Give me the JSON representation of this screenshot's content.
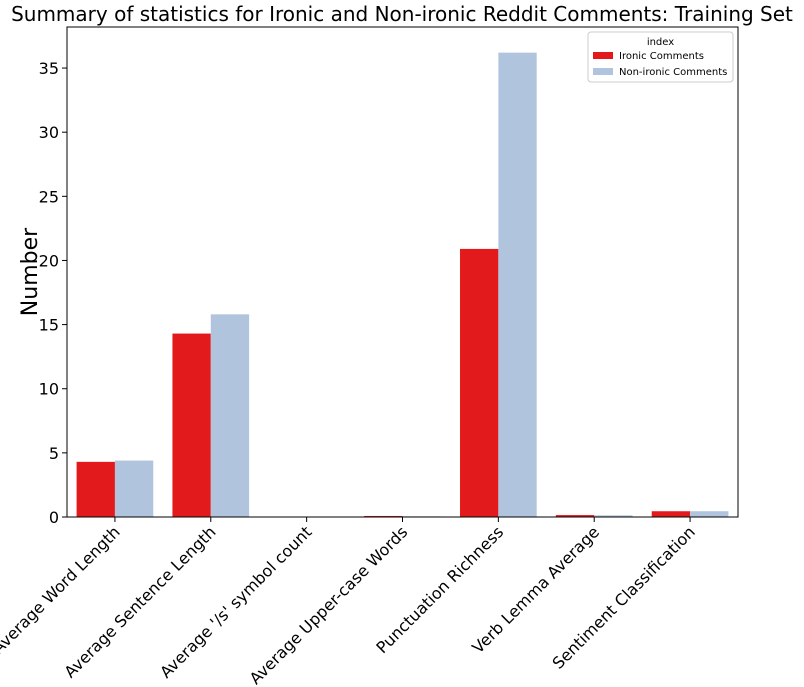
{
  "chart_data": {
    "type": "bar",
    "title": "Summary of statistics for Ironic and Non-ironic Reddit Comments: Training Set",
    "xlabel": "",
    "ylabel": "Number",
    "ylim": [
      0,
      38.2
    ],
    "yticks": [
      0,
      5,
      10,
      15,
      20,
      25,
      30,
      35
    ],
    "categories": [
      "Average Word Length",
      "Average Sentence Length",
      "Average '/s' symbol count",
      "Average Upper-case Words",
      "Punctuation Richness",
      "Verb Lemma Average",
      "Sentiment Classification"
    ],
    "series": [
      {
        "name": "Ironic Comments",
        "color": "#e31a1c",
        "values": [
          4.3,
          14.3,
          0.02,
          0.08,
          20.9,
          0.15,
          0.45
        ]
      },
      {
        "name": "Non-ironic Comments",
        "color": "#b0c4de",
        "values": [
          4.4,
          15.8,
          0.0,
          0.05,
          36.2,
          0.13,
          0.45
        ]
      }
    ],
    "legend": {
      "title": "index",
      "position": "top-right"
    },
    "grid": false
  }
}
